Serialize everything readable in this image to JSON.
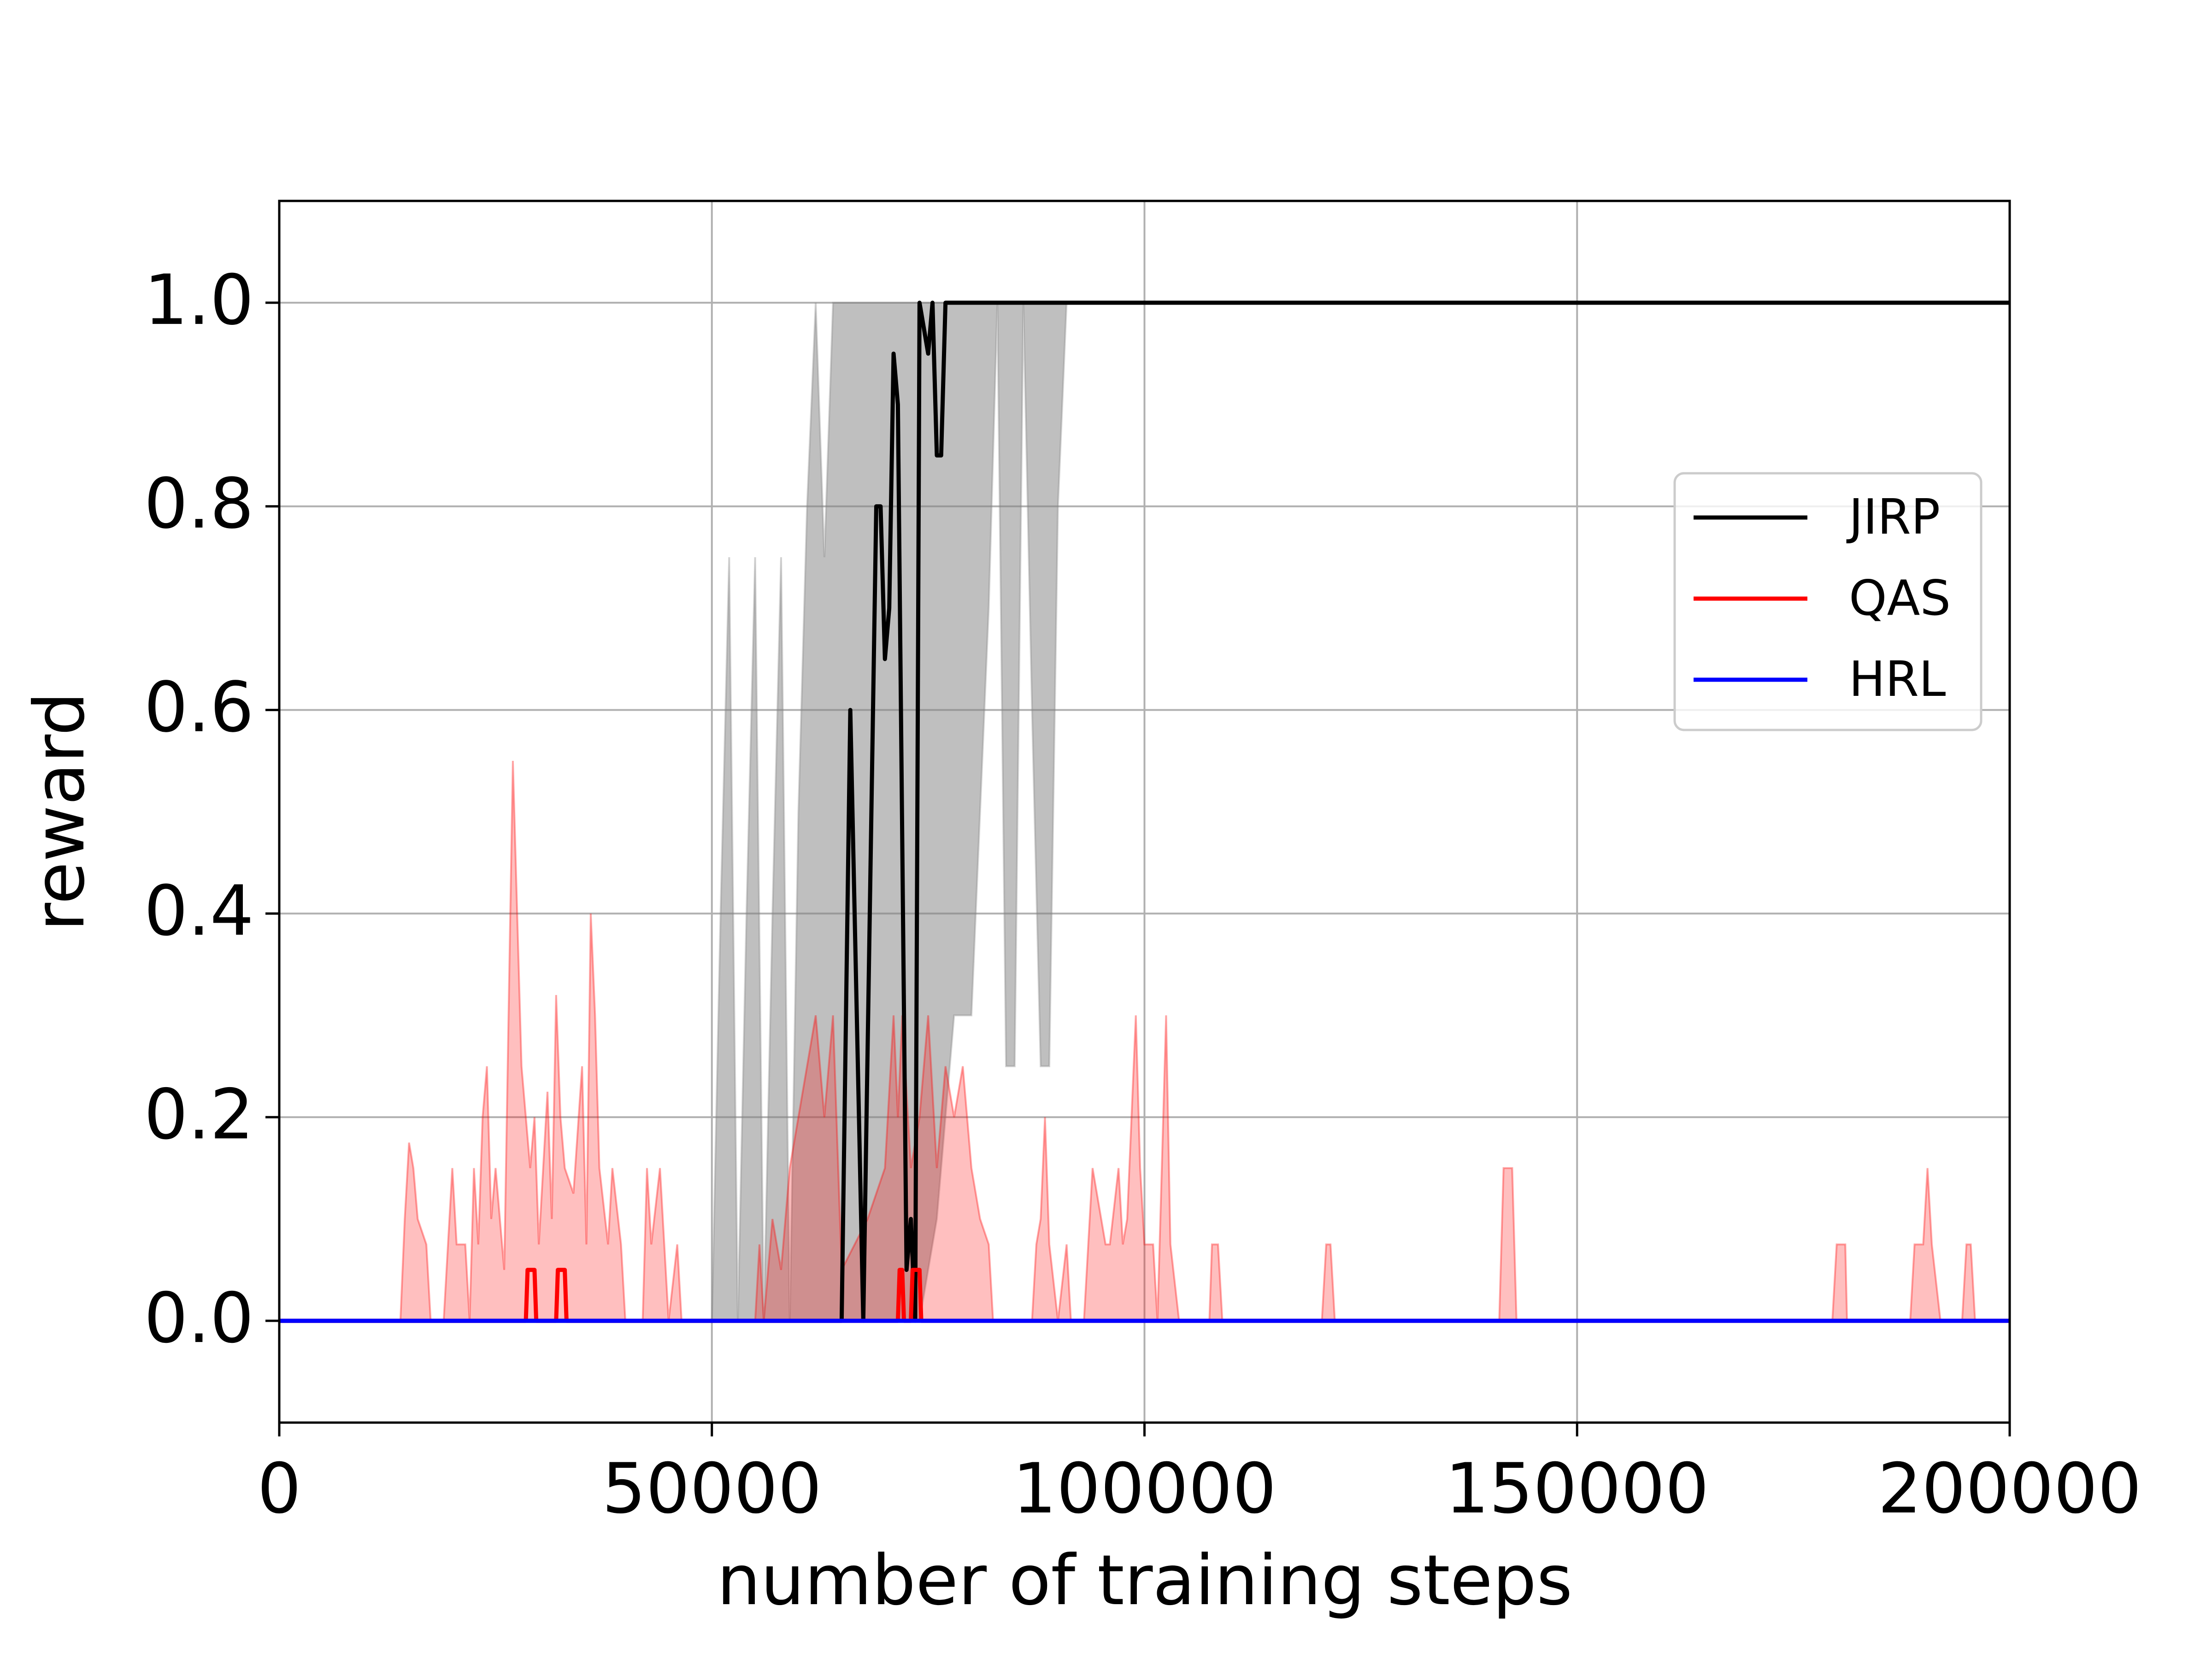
{
  "chart_data": {
    "type": "line",
    "xlabel": "number of training steps",
    "ylabel": "reward",
    "xlim": [
      0,
      200000
    ],
    "ylim": [
      -0.1,
      1.1
    ],
    "xticks": [
      0,
      50000,
      100000,
      150000,
      200000
    ],
    "yticks": [
      {
        "value": 0,
        "label": "0.0"
      },
      0.2,
      0.4,
      0.6,
      0.8,
      {
        "value": 1,
        "label": "1.0"
      }
    ],
    "grid": true,
    "legend": "center right",
    "series": [
      {
        "name": "JIRP",
        "color": "#000000",
        "band_color": "#808080",
        "x": [
          0,
          65000,
          66000,
          67500,
          69000,
          69500,
          70000,
          70500,
          71000,
          71500,
          72500,
          73000,
          73500,
          74000,
          75000,
          75500,
          76000,
          76500,
          77000,
          200000
        ],
        "values": [
          0,
          0,
          0.6,
          0,
          0.8,
          0.8,
          0.65,
          0.7,
          0.95,
          0.9,
          0.05,
          0.1,
          0,
          1.0,
          0.95,
          1.0,
          0.85,
          0.85,
          1.0,
          1.0
        ],
        "band": {
          "x": [
            0,
            50000,
            51000,
            52000,
            53000,
            54000,
            55000,
            56000,
            57000,
            58000,
            59000,
            60000,
            61000,
            62000,
            63000,
            64000,
            65000,
            70000,
            74000,
            76000,
            78000,
            80000,
            82000,
            83000,
            84000,
            85000,
            86000,
            87000,
            88000,
            89000,
            90000,
            91000,
            200000
          ],
          "upper": [
            0,
            0,
            0.4,
            0.75,
            0,
            0.4,
            0.75,
            0,
            0.4,
            0.75,
            0,
            0.5,
            0.8,
            1.0,
            0.75,
            1.0,
            1.0,
            1.0,
            1.0,
            1.0,
            1.0,
            1.0,
            1.0,
            1.0,
            1.0,
            1.0,
            1.0,
            1.0,
            1.0,
            1.0,
            1.0,
            1.0,
            1.0
          ],
          "lower": [
            0,
            0,
            0,
            0,
            0,
            0,
            0,
            0,
            0,
            0,
            0,
            0,
            0,
            0,
            0,
            0,
            0,
            0,
            0,
            0.1,
            0.3,
            0.3,
            0.7,
            1.0,
            0.25,
            0.25,
            1.0,
            0.6,
            0.25,
            0.25,
            0.8,
            1.0,
            1.0
          ]
        }
      },
      {
        "name": "QAS",
        "color": "#ff0000",
        "band_color": "#ff0000",
        "x": [
          0,
          28500,
          28700,
          29500,
          29700,
          32000,
          32200,
          33000,
          33200,
          71500,
          71700,
          72000,
          72200,
          73000,
          73200,
          74000,
          74200,
          200000
        ],
        "values": [
          0,
          0,
          0.05,
          0.05,
          0,
          0,
          0.05,
          0.05,
          0,
          0,
          0.05,
          0.05,
          0,
          0,
          0.05,
          0.05,
          0,
          0
        ],
        "band": {
          "x": [
            0,
            14000,
            14500,
            15000,
            15500,
            16000,
            17000,
            17500,
            19000,
            19500,
            20000,
            20500,
            21500,
            22000,
            22500,
            23000,
            23500,
            24000,
            24500,
            25000,
            26000,
            27000,
            27500,
            28000,
            29000,
            29500,
            30000,
            31000,
            31500,
            32000,
            32500,
            33000,
            34000,
            35000,
            35500,
            36000,
            36500,
            37000,
            38000,
            38500,
            39500,
            40000,
            42000,
            42500,
            43000,
            44000,
            44500,
            45000,
            46000,
            46500,
            55000,
            55500,
            56000,
            57000,
            58000,
            59000,
            60000,
            61000,
            62000,
            63000,
            64000,
            65000,
            68000,
            70000,
            71000,
            71500,
            72000,
            73000,
            74000,
            75000,
            76000,
            77000,
            78000,
            79000,
            80000,
            81000,
            82000,
            82500,
            87000,
            87500,
            88000,
            88500,
            89000,
            90000,
            91000,
            91500,
            93000,
            93500,
            94000,
            95000,
            95500,
            96000,
            97000,
            97500,
            98000,
            99000,
            99500,
            100000,
            101000,
            101500,
            102000,
            102500,
            103000,
            104000,
            107500,
            107800,
            108500,
            109000,
            120500,
            121000,
            121500,
            122000,
            141000,
            141500,
            142500,
            143000,
            179500,
            180000,
            181000,
            181200,
            188500,
            189000,
            190000,
            190500,
            191000,
            192000,
            194500,
            195000,
            195500,
            196000,
            200000
          ],
          "upper": [
            0,
            0,
            0.1,
            0.175,
            0.15,
            0.1,
            0.075,
            0,
            0,
            0.075,
            0.15,
            0.075,
            0.075,
            0,
            0.15,
            0.075,
            0.2,
            0.25,
            0.1,
            0.15,
            0.05,
            0.55,
            0.4,
            0.25,
            0.15,
            0.2,
            0.075,
            0.225,
            0.1,
            0.32,
            0.2,
            0.15,
            0.125,
            0.25,
            0.075,
            0.4,
            0.3,
            0.15,
            0.075,
            0.15,
            0.075,
            0,
            0,
            0.15,
            0.075,
            0.15,
            0.075,
            0,
            0.075,
            0,
            0,
            0.075,
            0,
            0.1,
            0.05,
            0.15,
            0.2,
            0.25,
            0.3,
            0.2,
            0.3,
            0.05,
            0.1,
            0.15,
            0.3,
            0.2,
            0.3,
            0.15,
            0.2,
            0.3,
            0.15,
            0.25,
            0.2,
            0.25,
            0.15,
            0.1,
            0.075,
            0,
            0,
            0.075,
            0.1,
            0.2,
            0.075,
            0,
            0.075,
            0,
            0,
            0.075,
            0.15,
            0.1,
            0.075,
            0.075,
            0.15,
            0.075,
            0.1,
            0.3,
            0.15,
            0.075,
            0.075,
            0,
            0.15,
            0.3,
            0.075,
            0,
            0,
            0.075,
            0.075,
            0,
            0,
            0.075,
            0.075,
            0,
            0,
            0.15,
            0.15,
            0,
            0,
            0.075,
            0.075,
            0,
            0,
            0.075,
            0.075,
            0.15,
            0.075,
            0,
            0,
            0.075,
            0.075,
            0,
            0
          ]
        }
      },
      {
        "name": "HRL",
        "color": "#0000ff",
        "x": [
          0,
          200000
        ],
        "values": [
          0,
          0
        ]
      }
    ]
  }
}
